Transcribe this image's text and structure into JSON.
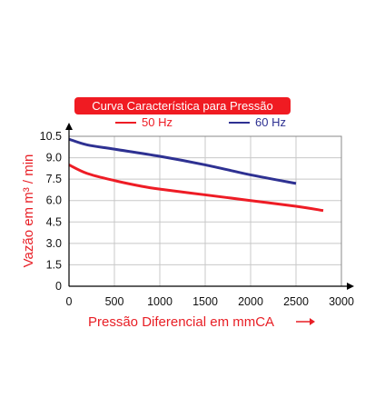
{
  "colors": {
    "title_background": "#f01b22",
    "series_50hz": "#ee1c25",
    "series_60hz": "#2e3192",
    "axis_title": "#e81e25",
    "grid": "#c8c8c8",
    "plot_border": "#888888"
  },
  "chart_data": {
    "type": "line",
    "title": "Curva Característica para Pressão",
    "xlabel": "Pressão Diferencial em mmCA",
    "ylabel": "Vazão em m³ / min",
    "xlim": [
      0,
      3000
    ],
    "ylim": [
      0,
      10.5
    ],
    "xticks": [
      "0",
      "500",
      "1000",
      "1500",
      "2000",
      "2500",
      "3000"
    ],
    "yticks": [
      "0",
      "1.5",
      "3.0",
      "4.5",
      "6.0",
      "7.5",
      "9.0",
      "10.5"
    ],
    "grid": true,
    "legend_position": "top-right",
    "series": [
      {
        "name": "50 Hz",
        "color": "#ee1c25",
        "x": [
          0,
          200,
          500,
          800,
          1000,
          1500,
          2000,
          2500,
          2800
        ],
        "y": [
          8.5,
          7.9,
          7.4,
          7.0,
          6.8,
          6.4,
          6.0,
          5.6,
          5.3
        ]
      },
      {
        "name": "60 Hz",
        "color": "#2e3192",
        "x": [
          0,
          200,
          500,
          1000,
          1500,
          2000,
          2500
        ],
        "y": [
          10.3,
          9.9,
          9.6,
          9.1,
          8.5,
          7.8,
          7.2
        ]
      }
    ]
  }
}
